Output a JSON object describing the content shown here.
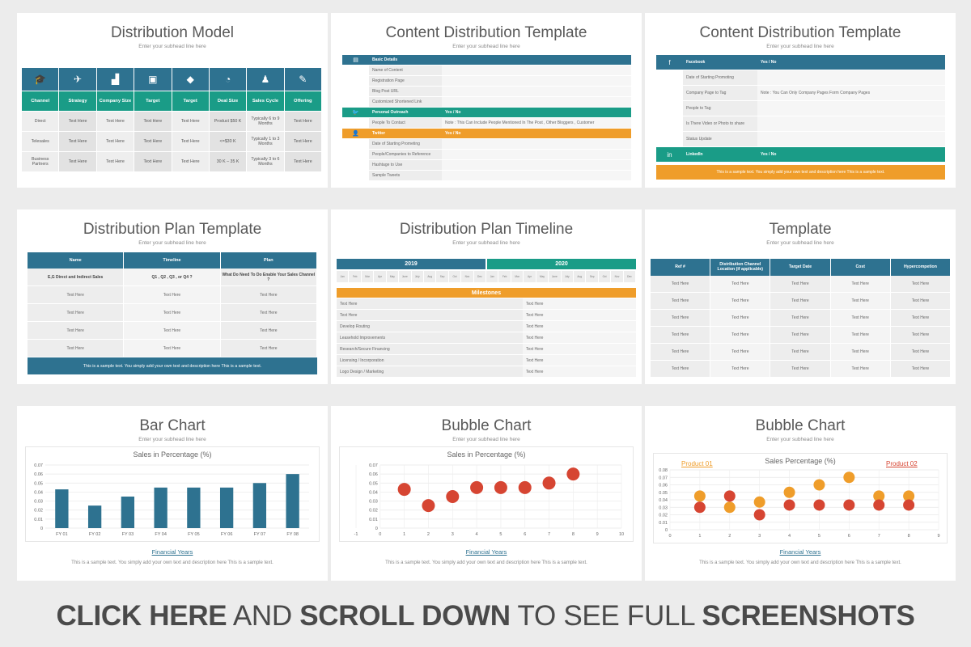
{
  "subhead": "Enter your subhead line here",
  "sample_text": "This is a sample text. You simply add your own text and description here This is a sample text.",
  "slide1": {
    "title": "Distribution Model",
    "icons": [
      "graduation-cap-icon",
      "paper-plane-icon",
      "bar-growth-icon",
      "tv-icon",
      "diamond-icon",
      "lightbulb-icon",
      "people-icon",
      "edit-icon"
    ],
    "headers": [
      "Channel",
      "Strategy",
      "Company Size",
      "Target",
      "Target",
      "Deal Size",
      "Sales Cycle",
      "Offering"
    ],
    "rows": [
      [
        "Direct",
        "Text Here",
        "Text Here",
        "Text Here",
        "Text Here",
        "Product $50 K",
        "Typically 6 to 9 Months",
        "Text Here"
      ],
      [
        "Telesales",
        "Text Here",
        "Text Here",
        "Text Here",
        "Text Here",
        "<=$30 K",
        "Typically 1 to 3 Months",
        "Text Here"
      ],
      [
        "Business Partners",
        "Text Here",
        "Text Here",
        "Text Here",
        "Text Here",
        "30 K – 35 K",
        "Typically 3 to 6 Months",
        "Text Here"
      ]
    ]
  },
  "slide2": {
    "title": "Content Distribution Template",
    "sections": [
      {
        "icon": "book-icon",
        "color": "#2e7290",
        "head": [
          "Basic Details",
          ""
        ],
        "items": [
          [
            "Name of Content",
            ""
          ],
          [
            "Registration Page",
            ""
          ],
          [
            "Blog Post URL",
            ""
          ],
          [
            "Customized Shortened Link",
            ""
          ]
        ]
      },
      {
        "icon": "twitter-icon",
        "color": "#1a9c87",
        "head": [
          "Personal Outreach",
          "Yes / No"
        ],
        "items": [
          [
            "People To Contact",
            "Note : This Can Include People Mentioned In The Post , Other Bloggers , Customer"
          ]
        ]
      },
      {
        "icon": "user-icon",
        "color": "#ef9d2a",
        "head": [
          "Twitter",
          "Yes / No"
        ],
        "items": [
          [
            "Date of Starting Prometing",
            ""
          ],
          [
            "People/Companies to Reference",
            ""
          ],
          [
            "Hashtage to Use",
            ""
          ],
          [
            "Sample Tweets",
            ""
          ]
        ]
      }
    ]
  },
  "slide3": {
    "title": "Content Distribution Template",
    "sections": [
      {
        "icon": "facebook-icon",
        "color": "#2e7290",
        "head": [
          "Facebook",
          "Yes / No"
        ],
        "items": [
          [
            "Date of Starting Promoting",
            ""
          ],
          [
            "Company Page to Tag",
            "Note : You Can Only Company Pages Form Company Pages"
          ],
          [
            "People to Tag",
            ""
          ],
          [
            "Is There Video or Photo to share",
            ""
          ],
          [
            "Status Update",
            ""
          ]
        ]
      },
      {
        "icon": "linkedin-icon",
        "color": "#1a9c87",
        "head": [
          "LinkedIn",
          "Yes / No"
        ],
        "items": []
      }
    ],
    "footer": "This is a sample text. You simply add your own text and description here This is a sample text."
  },
  "slide4": {
    "title": "Distribution Plan Template",
    "headers": [
      "Name",
      "Timeline",
      "Plan"
    ],
    "rows": [
      [
        "E,G Direct and Indirect Sales",
        "Q1 , Q2 , Q3 , or Q4 ?",
        "What Do Need To Do Enable Your Sales Channel ?"
      ],
      [
        "Text Here",
        "Text Here",
        "Text Here"
      ],
      [
        "Text Here",
        "Text Here",
        "Text Here"
      ],
      [
        "Text Here",
        "Text Here",
        "Text Here"
      ],
      [
        "Text Here",
        "Text Here",
        "Text Here"
      ]
    ],
    "footer": "This is a sample text. You simply add your own text and description here This is a sample text."
  },
  "slide5": {
    "title": "Distribution Plan Timeline",
    "years": [
      {
        "label": "2019",
        "color": "#2e7290"
      },
      {
        "label": "2020",
        "color": "#1a9c87"
      }
    ],
    "months": [
      "Jan",
      "Feb",
      "Mar",
      "Apr",
      "May",
      "June",
      "July",
      "Aug",
      "Sep",
      "Oct",
      "Nov",
      "Dec",
      "Jan",
      "Feb",
      "Mar",
      "Apr",
      "May",
      "June",
      "July",
      "Aug",
      "Sep",
      "Oct",
      "Nov",
      "Dec"
    ],
    "milestones_label": "Milestones",
    "rows": [
      [
        "Text Here",
        "Text Here"
      ],
      [
        "Text Here",
        "Text Here"
      ],
      [
        "Develop Routing",
        "Text Here"
      ],
      [
        "Leasehold Improvements",
        "Text Here"
      ],
      [
        "Research/Secure Financing",
        "Text Here"
      ],
      [
        "Licensing / Incorporation",
        "Text Here"
      ],
      [
        "Logo Design / Marketing",
        "Text Here"
      ]
    ]
  },
  "slide6": {
    "title": "Template",
    "headers": [
      "Ref #",
      "Distribution Channel Location (if applicable)",
      "Target Date",
      "Cost",
      "Hypercompetion"
    ],
    "rows": [
      [
        "Text Here",
        "Text Here",
        "Text Here",
        "Text Here",
        "Text Here"
      ],
      [
        "Text Here",
        "Text Here",
        "Text Here",
        "Text Here",
        "Text Here"
      ],
      [
        "Text Here",
        "Text Here",
        "Text Here",
        "Text Here",
        "Text Here"
      ],
      [
        "Text Here",
        "Text Here",
        "Text Here",
        "Text Here",
        "Text Here"
      ],
      [
        "Text Here",
        "Text Here",
        "Text Here",
        "Text Here",
        "Text Here"
      ],
      [
        "Text Here",
        "Text Here",
        "Text Here",
        "Text Here",
        "Text Here"
      ]
    ]
  },
  "slide7": {
    "title": "Bar Chart",
    "xaxis_label": "Financial Years"
  },
  "slide8": {
    "title": "Bubble Chart",
    "xaxis_label": "Financial Years"
  },
  "slide9": {
    "title": "Bubble Chart",
    "xaxis_label": "Financial Years",
    "product1": "Product 01",
    "product2": "Product 02"
  },
  "colors": {
    "blue": "#2e7290",
    "teal": "#1a9c87",
    "orange": "#ef9d2a",
    "red": "#d64532"
  },
  "chart_data": [
    {
      "type": "bar",
      "title": "Sales in Percentage (%)",
      "xlabel": "Financial Years",
      "categories": [
        "FY 01",
        "FY 02",
        "FY 03",
        "FY 04",
        "FY 05",
        "FY 06",
        "FY 07",
        "FY 08"
      ],
      "values": [
        0.043,
        0.025,
        0.035,
        0.045,
        0.045,
        0.045,
        0.05,
        0.06
      ],
      "ylim": [
        0,
        0.07
      ],
      "yticks": [
        "0",
        "0.01",
        "0.02",
        "0.03",
        "0.04",
        "0.05",
        "0.06",
        "0.07"
      ]
    },
    {
      "type": "scatter",
      "title": "Sales in Percentage (%)",
      "xlabel": "Financial Years",
      "x": [
        1,
        2,
        3,
        4,
        5,
        6,
        7,
        8
      ],
      "y": [
        0.043,
        0.025,
        0.035,
        0.045,
        0.045,
        0.045,
        0.05,
        0.06
      ],
      "xlim": [
        -1,
        10
      ],
      "ylim": [
        0,
        0.07
      ],
      "xticks": [
        "-1",
        "0",
        "1",
        "2",
        "3",
        "4",
        "5",
        "6",
        "7",
        "8",
        "9",
        "10"
      ],
      "yticks": [
        "0",
        "0.01",
        "0.02",
        "0.03",
        "0.04",
        "0.05",
        "0.06",
        "0.07"
      ]
    },
    {
      "type": "scatter",
      "title": "Sales Percentage (%)",
      "xlabel": "Financial Years",
      "x": [
        1,
        2,
        3,
        4,
        5,
        6,
        7,
        8
      ],
      "series": [
        {
          "name": "Product 01",
          "color": "#ef9d2a",
          "y": [
            0.045,
            0.03,
            0.037,
            0.05,
            0.06,
            0.07,
            0.045,
            0.045
          ]
        },
        {
          "name": "Product 02",
          "color": "#d64532",
          "y": [
            0.03,
            0.045,
            0.02,
            0.033,
            0.033,
            0.033,
            0.033,
            0.033
          ]
        }
      ],
      "xlim": [
        0,
        9
      ],
      "ylim": [
        0,
        0.08
      ],
      "xticks": [
        "0",
        "1",
        "2",
        "3",
        "4",
        "5",
        "6",
        "7",
        "8",
        "9"
      ],
      "yticks": [
        "0",
        "0.01",
        "0.02",
        "0.03",
        "0.04",
        "0.05",
        "0.06",
        "0.07",
        "0.08"
      ]
    }
  ],
  "banner": {
    "p1": "CLICK HERE",
    "p2": " AND ",
    "p3": "SCROLL DOWN",
    "p4": " TO SEE FULL ",
    "p5": "SCREENSHOTS"
  }
}
